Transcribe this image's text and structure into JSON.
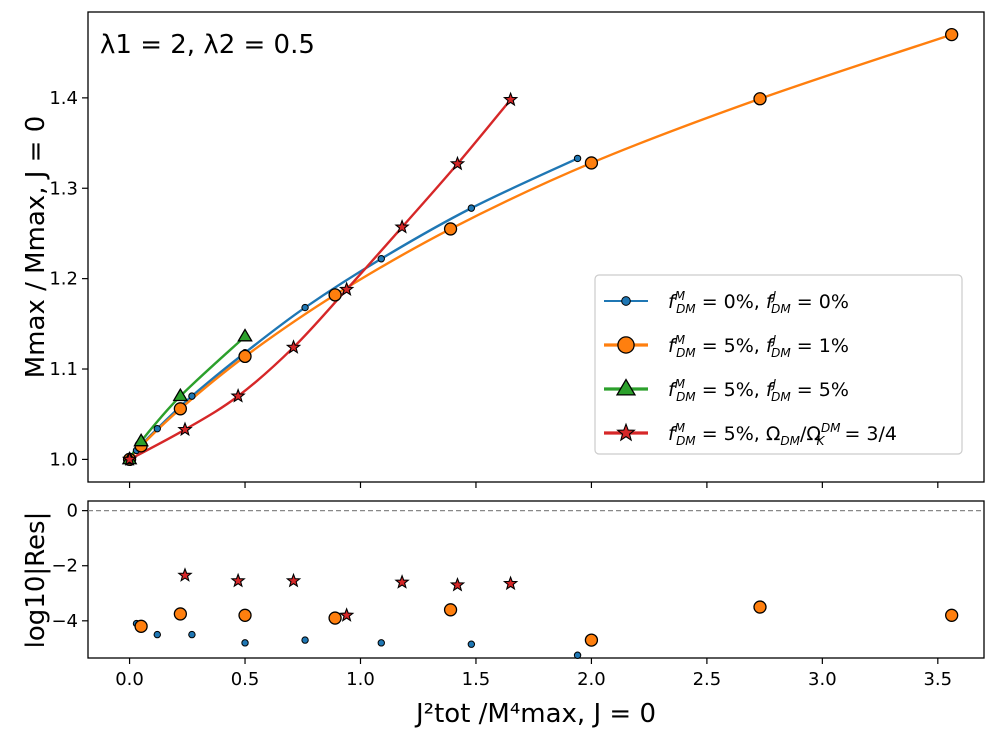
{
  "chart_data": [
    {
      "type": "line",
      "annotation": "λ1 = 2, λ2 = 0.5",
      "ylabel": "Mmax / Mmax, J = 0",
      "xlim": [
        -0.18,
        3.7
      ],
      "ylim": [
        0.975,
        1.495
      ],
      "yticks": [
        1.0,
        1.1,
        1.2,
        1.3,
        1.4
      ],
      "ytick_labels": [
        "1.0",
        "1.1",
        "1.2",
        "1.3",
        "1.4"
      ],
      "xticks": [
        0.0,
        0.5,
        1.0,
        1.5,
        2.0,
        2.5,
        3.0,
        3.5
      ],
      "legend_position": "lower-right",
      "series": [
        {
          "name": "f_DM^M = 0%, f_DM^J = 0%",
          "legend": {
            "a": "0%",
            "b": "0%"
          },
          "color": "#1f77b4",
          "marker": "dot",
          "x": [
            0.0,
            0.03,
            0.12,
            0.27,
            0.5,
            0.76,
            1.09,
            1.48,
            1.94
          ],
          "y": [
            1.0,
            1.01,
            1.034,
            1.07,
            1.118,
            1.168,
            1.222,
            1.278,
            1.333
          ]
        },
        {
          "name": "f_DM^M = 5%, f_DM^J = 1%",
          "legend": {
            "a": "5%",
            "b": "1%"
          },
          "color": "#ff7f0e",
          "marker": "circle",
          "x": [
            0.0,
            0.05,
            0.22,
            0.5,
            0.89,
            1.39,
            2.0,
            2.73,
            3.56
          ],
          "y": [
            1.0,
            1.015,
            1.056,
            1.114,
            1.182,
            1.255,
            1.328,
            1.399,
            1.47
          ]
        },
        {
          "name": "f_DM^M = 5%, f_DM^J = 5%",
          "legend": {
            "a": "5%",
            "b": "5%"
          },
          "color": "#2ca02c",
          "marker": "triangle",
          "x": [
            0.0,
            0.05,
            0.22,
            0.5
          ],
          "y": [
            1.0,
            1.02,
            1.07,
            1.136
          ]
        },
        {
          "name": "f_DM^M = 5%, Ω_DM/Ω_K^DM = 3/4",
          "legend": {
            "a": "5%",
            "b": "3/4"
          },
          "color": "#d62728",
          "marker": "star",
          "x": [
            0.0,
            0.24,
            0.47,
            0.71,
            0.94,
            1.18,
            1.42,
            1.65
          ],
          "y": [
            1.0,
            1.033,
            1.07,
            1.124,
            1.188,
            1.257,
            1.327,
            1.398
          ]
        }
      ]
    },
    {
      "type": "scatter",
      "xlabel": "J²tot /M⁴max, J = 0",
      "ylabel": "log10|Res|",
      "xlim": [
        -0.18,
        3.7
      ],
      "ylim": [
        -5.35,
        0.35
      ],
      "yticks": [
        0,
        -2,
        -4
      ],
      "ytick_labels": [
        "0",
        "−2",
        "−4"
      ],
      "xticks": [
        0.0,
        0.5,
        1.0,
        1.5,
        2.0,
        2.5,
        3.0,
        3.5
      ],
      "xtick_labels": [
        "0.0",
        "0.5",
        "1.0",
        "1.5",
        "2.0",
        "2.5",
        "3.0",
        "3.5"
      ],
      "reference_line": 0,
      "series": [
        {
          "name": "f_DM^M = 0%, f_DM^J = 0%",
          "color": "#1f77b4",
          "marker": "dot",
          "x": [
            0.03,
            0.12,
            0.27,
            0.5,
            0.76,
            1.09,
            1.48,
            1.94
          ],
          "y": [
            -4.1,
            -4.5,
            -4.5,
            -4.8,
            -4.7,
            -4.8,
            -4.85,
            -5.25
          ]
        },
        {
          "name": "f_DM^M = 5%, f_DM^J = 1%",
          "color": "#ff7f0e",
          "marker": "circle",
          "x": [
            0.05,
            0.22,
            0.5,
            0.89,
            1.39,
            2.0,
            2.73,
            3.56
          ],
          "y": [
            -4.2,
            -3.75,
            -3.8,
            -3.9,
            -3.6,
            -4.7,
            -3.5,
            -3.8
          ]
        },
        {
          "name": "f_DM^M = 5%, Ω_DM/Ω_K^DM = 3/4",
          "color": "#d62728",
          "marker": "star",
          "x": [
            0.24,
            0.47,
            0.71,
            0.94,
            1.18,
            1.42,
            1.65
          ],
          "y": [
            -2.35,
            -2.55,
            -2.55,
            -3.8,
            -2.6,
            -2.7,
            -2.65
          ]
        }
      ]
    }
  ]
}
